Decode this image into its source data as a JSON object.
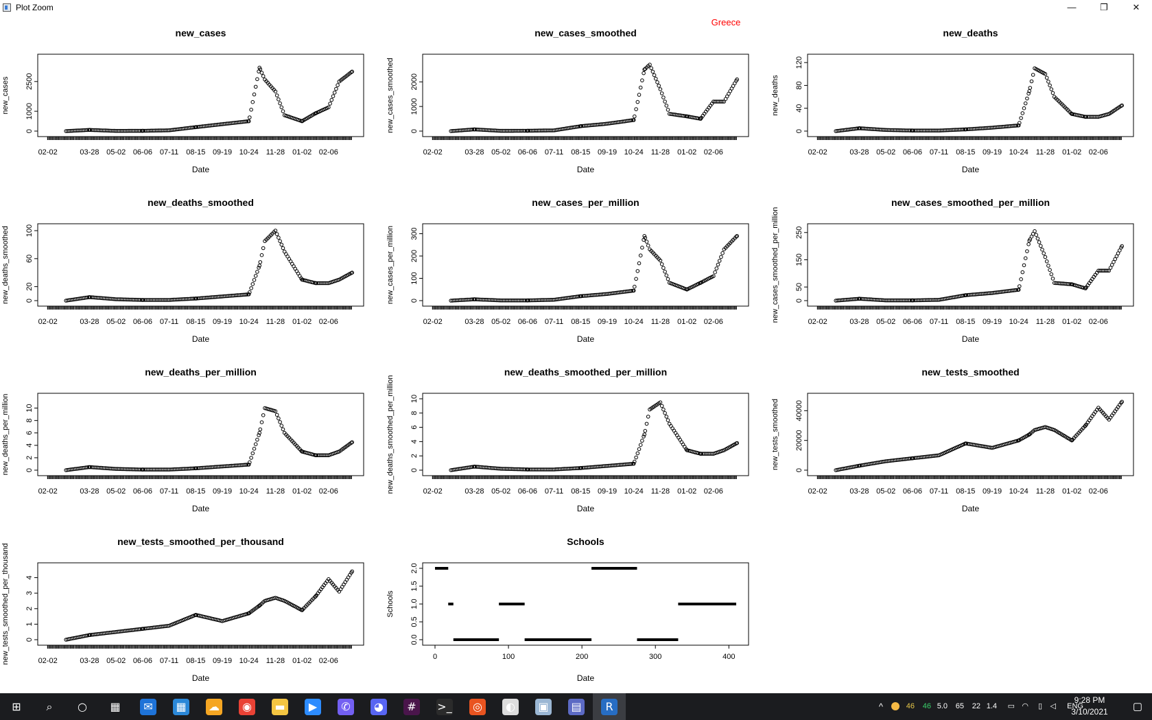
{
  "window": {
    "title": "Plot Zoom",
    "minimize_glyph": "—",
    "restore_glyph": "❐",
    "close_glyph": "✕"
  },
  "overlay_label": "Greece",
  "colors": {
    "overlay_label": "#ff0000",
    "points": "#000000",
    "taskbar": "#1b1c1f"
  },
  "date_ticks": [
    "02-02",
    "03-28",
    "05-02",
    "06-06",
    "07-11",
    "08-15",
    "09-19",
    "10-24",
    "11-28",
    "01-02",
    "02-06"
  ],
  "chart_data": [
    {
      "type": "scatter",
      "title": "new_cases",
      "xlabel": "Date",
      "ylabel": "new_cases",
      "yticks": [
        "0",
        "1000",
        "2500"
      ],
      "ylim": [
        0,
        3600
      ],
      "x": [
        "02-26",
        "03-28",
        "05-02",
        "06-06",
        "07-11",
        "08-15",
        "09-19",
        "10-24",
        "11-07",
        "11-14",
        "11-28",
        "12-10",
        "01-02",
        "01-20",
        "02-06",
        "02-20",
        "03-09"
      ],
      "y": [
        0,
        60,
        10,
        15,
        40,
        200,
        350,
        500,
        3200,
        2600,
        2000,
        800,
        500,
        900,
        1200,
        2500,
        3000
      ]
    },
    {
      "type": "scatter",
      "title": "new_cases_smoothed",
      "xlabel": "Date",
      "ylabel": "new_cases_smoothed",
      "yticks": [
        "0",
        "1000",
        "2000"
      ],
      "ylim": [
        0,
        2900
      ],
      "x": [
        "02-26",
        "03-28",
        "05-02",
        "06-06",
        "07-11",
        "08-15",
        "09-19",
        "10-24",
        "11-07",
        "11-14",
        "11-28",
        "12-10",
        "01-02",
        "01-20",
        "02-06",
        "02-20",
        "03-09"
      ],
      "y": [
        0,
        70,
        10,
        15,
        30,
        200,
        300,
        450,
        2500,
        2700,
        1700,
        700,
        600,
        500,
        1200,
        1200,
        2100
      ]
    },
    {
      "type": "scatter",
      "title": "new_deaths",
      "xlabel": "Date",
      "ylabel": "new_deaths",
      "yticks": [
        "0",
        "40",
        "80",
        "120"
      ],
      "ylim": [
        0,
        125
      ],
      "x": [
        "02-26",
        "03-28",
        "05-02",
        "06-06",
        "07-11",
        "08-15",
        "09-19",
        "10-24",
        "11-07",
        "11-14",
        "11-28",
        "12-10",
        "01-02",
        "01-20",
        "02-06",
        "02-20",
        "03-09"
      ],
      "y": [
        0,
        5,
        2,
        1,
        1,
        3,
        6,
        10,
        70,
        110,
        100,
        60,
        30,
        25,
        25,
        30,
        45
      ]
    },
    {
      "type": "scatter",
      "title": "new_deaths_smoothed",
      "xlabel": "Date",
      "ylabel": "new_deaths_smoothed",
      "yticks": [
        "0",
        "20",
        "60",
        "100"
      ],
      "ylim": [
        0,
        102
      ],
      "x": [
        "02-26",
        "03-28",
        "05-02",
        "06-06",
        "07-11",
        "08-15",
        "09-19",
        "10-24",
        "11-07",
        "11-14",
        "11-28",
        "12-10",
        "01-02",
        "01-20",
        "02-06",
        "02-20",
        "03-09"
      ],
      "y": [
        0,
        5,
        2,
        1,
        1,
        3,
        6,
        9,
        50,
        85,
        100,
        70,
        30,
        25,
        25,
        30,
        40
      ]
    },
    {
      "type": "scatter",
      "title": "new_cases_per_million",
      "xlabel": "Date",
      "ylabel": "new_cases_per_million",
      "yticks": [
        "0",
        "100",
        "200",
        "300"
      ],
      "ylim": [
        0,
        320
      ],
      "x": [
        "02-26",
        "03-28",
        "05-02",
        "06-06",
        "07-11",
        "08-15",
        "09-19",
        "10-24",
        "11-07",
        "11-14",
        "11-28",
        "12-10",
        "01-02",
        "01-20",
        "02-06",
        "02-20",
        "03-09"
      ],
      "y": [
        0,
        6,
        1,
        1,
        4,
        20,
        30,
        45,
        290,
        230,
        180,
        80,
        50,
        80,
        110,
        230,
        290
      ]
    },
    {
      "type": "scatter",
      "title": "new_cases_smoothed_per_million",
      "xlabel": "Date",
      "ylabel": "new_cases_smoothed_per_million",
      "yticks": [
        "0",
        "50",
        "150",
        "250"
      ],
      "ylim": [
        0,
        262
      ],
      "x": [
        "02-26",
        "03-28",
        "05-02",
        "06-06",
        "07-11",
        "08-15",
        "09-19",
        "10-24",
        "11-07",
        "11-14",
        "11-28",
        "12-10",
        "01-02",
        "01-20",
        "02-06",
        "02-20",
        "03-09"
      ],
      "y": [
        0,
        7,
        1,
        1,
        3,
        20,
        28,
        40,
        220,
        255,
        160,
        65,
        60,
        45,
        110,
        110,
        200
      ]
    },
    {
      "type": "scatter",
      "title": "new_deaths_per_million",
      "xlabel": "Date",
      "ylabel": "new_deaths_per_million",
      "yticks": [
        "0",
        "2",
        "4",
        "6",
        "8",
        "10"
      ],
      "ylim": [
        0,
        11.5
      ],
      "x": [
        "02-26",
        "03-28",
        "05-02",
        "06-06",
        "07-11",
        "08-15",
        "09-19",
        "10-24",
        "11-07",
        "11-14",
        "11-28",
        "12-10",
        "01-02",
        "01-20",
        "02-06",
        "02-20",
        "03-09"
      ],
      "y": [
        0,
        0.5,
        0.2,
        0.1,
        0.1,
        0.3,
        0.6,
        0.9,
        6,
        10,
        9.5,
        6,
        3,
        2.4,
        2.4,
        3,
        4.5
      ]
    },
    {
      "type": "scatter",
      "title": "new_deaths_smoothed_per_million",
      "xlabel": "Date",
      "ylabel": "new_deaths_smoothed_per_million",
      "yticks": [
        "0",
        "2",
        "4",
        "6",
        "8",
        "10"
      ],
      "ylim": [
        0,
        10
      ],
      "x": [
        "02-26",
        "03-28",
        "05-02",
        "06-06",
        "07-11",
        "08-15",
        "09-19",
        "10-24",
        "11-07",
        "11-14",
        "11-28",
        "12-10",
        "01-02",
        "01-20",
        "02-06",
        "02-20",
        "03-09"
      ],
      "y": [
        0,
        0.5,
        0.2,
        0.1,
        0.1,
        0.3,
        0.6,
        0.9,
        5,
        8.5,
        9.5,
        6.5,
        2.8,
        2.3,
        2.3,
        2.8,
        3.8
      ]
    },
    {
      "type": "scatter",
      "title": "new_tests_smoothed",
      "xlabel": "Date",
      "ylabel": "new_tests_smoothed",
      "yticks": [
        "0",
        "20000",
        "40000"
      ],
      "ylim": [
        0,
        48000
      ],
      "x": [
        "02-26",
        "03-28",
        "05-02",
        "06-06",
        "07-11",
        "08-15",
        "09-19",
        "10-24",
        "11-07",
        "11-14",
        "11-28",
        "12-10",
        "01-02",
        "01-20",
        "02-06",
        "02-20",
        "03-09"
      ],
      "y": [
        0,
        3000,
        6000,
        8000,
        10000,
        18000,
        15000,
        20000,
        24000,
        27000,
        29000,
        27000,
        20000,
        30000,
        42000,
        34000,
        46000
      ]
    },
    {
      "type": "scatter",
      "title": "new_tests_smoothed_per_thousand",
      "xlabel": "Date",
      "ylabel": "new_tests_smoothed_per_thousand",
      "yticks": [
        "0",
        "1",
        "2",
        "3",
        "4"
      ],
      "ylim": [
        0,
        4.6
      ],
      "x": [
        "02-26",
        "03-28",
        "05-02",
        "06-06",
        "07-11",
        "08-15",
        "09-19",
        "10-24",
        "11-07",
        "11-14",
        "11-28",
        "12-10",
        "01-02",
        "01-20",
        "02-06",
        "02-20",
        "03-09"
      ],
      "y": [
        0,
        0.3,
        0.5,
        0.7,
        0.9,
        1.6,
        1.2,
        1.7,
        2.2,
        2.5,
        2.7,
        2.5,
        1.9,
        2.8,
        3.9,
        3.1,
        4.4
      ]
    },
    {
      "type": "scatter",
      "title": "Schools",
      "xlabel": "Date",
      "ylabel": "Schools",
      "yticks": [
        "0.0",
        "0.5",
        "1.0",
        "1.5",
        "2.0"
      ],
      "ylim": [
        0,
        2
      ],
      "xticks": [
        "0",
        "100",
        "200",
        "300",
        "400"
      ],
      "xlim": [
        0,
        410
      ],
      "segments": [
        {
          "x0": 0,
          "x1": 18,
          "value": 2
        },
        {
          "x0": 18,
          "x1": 25,
          "value": 1
        },
        {
          "x0": 25,
          "x1": 87,
          "value": 0
        },
        {
          "x0": 87,
          "x1": 122,
          "value": 1
        },
        {
          "x0": 122,
          "x1": 213,
          "value": 0
        },
        {
          "x0": 213,
          "x1": 275,
          "value": 2
        },
        {
          "x0": 275,
          "x1": 331,
          "value": 0
        },
        {
          "x0": 331,
          "x1": 410,
          "value": 1
        }
      ]
    }
  ],
  "taskbar": {
    "items": [
      {
        "name": "start-button-icon",
        "glyph": "⊞",
        "color": "#ffffff"
      },
      {
        "name": "search-icon",
        "glyph": "⌕",
        "color": "#ffffff"
      },
      {
        "name": "cortana-icon",
        "glyph": "○",
        "color": "#ffffff"
      },
      {
        "name": "task-view-icon",
        "glyph": "▦",
        "color": "#ffffff"
      },
      {
        "name": "mail-icon",
        "glyph": "✉",
        "color": "#1e73d8"
      },
      {
        "name": "calendar-icon",
        "glyph": "▦",
        "color": "#2b88d8"
      },
      {
        "name": "weather-icon",
        "glyph": "☁",
        "color": "#f5a623"
      },
      {
        "name": "chrome-icon",
        "glyph": "◉",
        "color": "#e94235"
      },
      {
        "name": "file-explorer-icon",
        "glyph": "▬",
        "color": "#f4c542"
      },
      {
        "name": "zoom-icon",
        "glyph": "▶",
        "color": "#2d8cff"
      },
      {
        "name": "viber-icon",
        "glyph": "✆",
        "color": "#7360f2"
      },
      {
        "name": "discord-icon",
        "glyph": "◕",
        "color": "#5865f2"
      },
      {
        "name": "slack-icon",
        "glyph": "#",
        "color": "#4a154b"
      },
      {
        "name": "terminal-icon",
        "glyph": ">_",
        "color": "#2b2b2b"
      },
      {
        "name": "ubuntu-icon",
        "glyph": "◎",
        "color": "#e95420"
      },
      {
        "name": "compass-icon",
        "glyph": "◐",
        "color": "#dddddd"
      },
      {
        "name": "photos-icon",
        "glyph": "▣",
        "color": "#9bb7d4"
      },
      {
        "name": "calculator-icon",
        "glyph": "▤",
        "color": "#5c6ac4"
      },
      {
        "name": "r-icon",
        "glyph": "R",
        "color": "#276dc3"
      }
    ],
    "tray": {
      "chevron": "^",
      "values": [
        "46",
        "46",
        "5.0",
        "65",
        "22",
        "1.4"
      ],
      "value_colors": [
        "#e8c84a",
        "#3ad16b",
        "#ffffff",
        "#ffffff",
        "#ffffff",
        "#ffffff"
      ],
      "lang": "ENG",
      "time": "9:28 PM",
      "date": "3/10/2021"
    }
  }
}
